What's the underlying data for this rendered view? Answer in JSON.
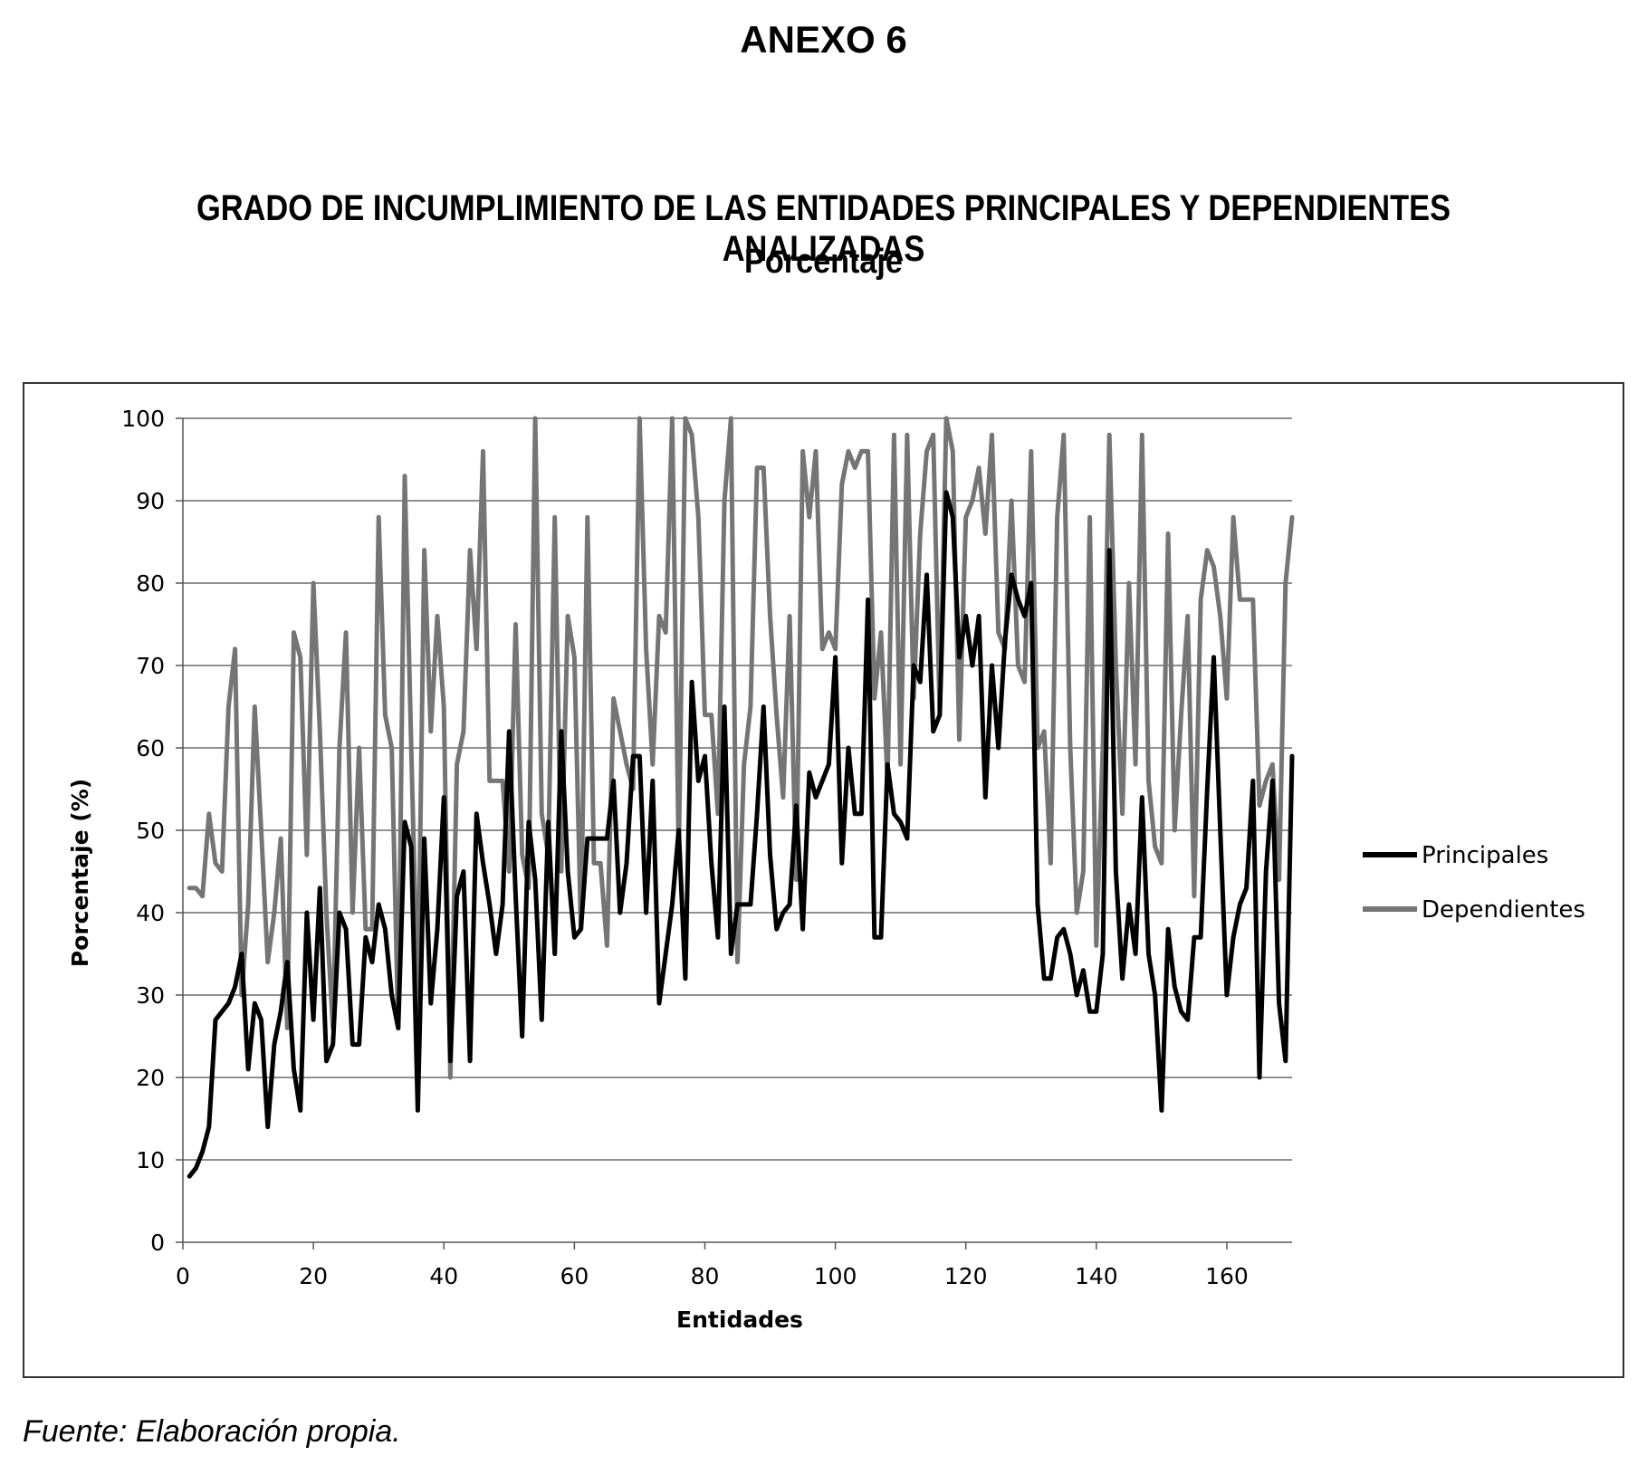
{
  "header": {
    "annex": "ANEXO 6",
    "title": "GRADO DE INCUMPLIMIENTO DE LAS ENTIDADES PRINCIPALES Y DEPENDIENTES ANALIZADAS",
    "subtitle": "Porcentaje"
  },
  "footer": {
    "source": "Fuente: Elaboración propia."
  },
  "chart_data": {
    "type": "line",
    "xlabel": "Entidades",
    "ylabel": "Porcentaje (%)",
    "xlim": [
      0,
      170
    ],
    "ylim": [
      0,
      100
    ],
    "xticks": [
      0,
      20,
      40,
      60,
      80,
      100,
      120,
      140,
      160
    ],
    "yticks": [
      0,
      10,
      20,
      30,
      40,
      50,
      60,
      70,
      80,
      90,
      100
    ],
    "grid": "horizontal",
    "legend": "right",
    "series": [
      {
        "name": "Principales",
        "color": "#000000",
        "values": [
          8,
          9,
          11,
          14,
          27,
          28,
          29,
          31,
          35,
          21,
          29,
          27,
          14,
          24,
          28,
          34,
          21,
          16,
          40,
          27,
          43,
          22,
          24,
          40,
          38,
          24,
          24,
          37,
          34,
          41,
          38,
          30,
          26,
          51,
          48,
          16,
          49,
          29,
          38,
          54,
          22,
          42,
          45,
          22,
          52,
          46,
          41,
          35,
          41,
          62,
          42,
          25,
          51,
          44,
          27,
          51,
          35,
          62,
          45,
          37,
          38,
          49,
          49,
          49,
          49,
          56,
          40,
          46,
          59,
          59,
          40,
          56,
          29,
          35,
          41,
          50,
          32,
          68,
          56,
          59,
          46,
          37,
          65,
          35,
          41,
          41,
          41,
          52,
          65,
          47,
          38,
          40,
          41,
          53,
          38,
          57,
          54,
          56,
          58,
          71,
          46,
          60,
          52,
          52,
          78,
          37,
          37,
          58,
          52,
          51,
          49,
          70,
          68,
          81,
          62,
          64,
          91,
          88,
          71,
          76,
          70,
          76,
          54,
          70,
          60,
          73,
          81,
          78,
          76,
          80,
          41,
          32,
          32,
          37,
          38,
          35,
          30,
          33,
          28,
          28,
          35,
          84,
          45,
          32,
          41,
          35,
          54,
          35,
          30,
          16,
          38,
          31,
          28,
          27,
          37,
          37,
          55,
          71,
          50,
          30,
          37,
          41,
          43,
          56,
          20,
          45,
          56,
          29,
          22,
          59
        ]
      },
      {
        "name": "Dependientes",
        "color": "#757575",
        "values": [
          43,
          43,
          42,
          52,
          46,
          45,
          65,
          72,
          30,
          41,
          65,
          50,
          34,
          40,
          49,
          26,
          74,
          71,
          47,
          80,
          62,
          40,
          26,
          60,
          74,
          40,
          60,
          38,
          38,
          88,
          64,
          60,
          26,
          93,
          60,
          28,
          84,
          62,
          76,
          65,
          20,
          58,
          62,
          84,
          72,
          96,
          56,
          56,
          56,
          45,
          75,
          47,
          43,
          100,
          52,
          47,
          88,
          45,
          76,
          71,
          38,
          88,
          46,
          46,
          36,
          66,
          62,
          58,
          55,
          100,
          72,
          58,
          76,
          74,
          100,
          47,
          100,
          98,
          88,
          64,
          64,
          52,
          90,
          100,
          34,
          58,
          65,
          94,
          94,
          76,
          64,
          54,
          76,
          44,
          96,
          88,
          96,
          72,
          74,
          72,
          92,
          96,
          94,
          96,
          96,
          66,
          74,
          56,
          98,
          58,
          98,
          66,
          86,
          96,
          98,
          64,
          100,
          96,
          61,
          88,
          90,
          94,
          86,
          98,
          74,
          72,
          90,
          70,
          68,
          96,
          60,
          62,
          46,
          88,
          98,
          60,
          40,
          45,
          88,
          36,
          60,
          98,
          70,
          52,
          80,
          58,
          98,
          56,
          48,
          46,
          86,
          50,
          64,
          76,
          42,
          78,
          84,
          82,
          76,
          66,
          88,
          78,
          78,
          78,
          53,
          56,
          58,
          44,
          80,
          88
        ]
      }
    ]
  }
}
